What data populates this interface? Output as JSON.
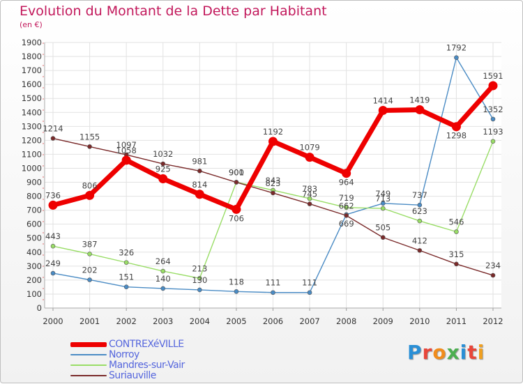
{
  "title": "Evolution du Montant de la Dette par Habitant",
  "subtitle": "(en €)",
  "logo": {
    "letters": [
      "P",
      "r",
      "o",
      "x",
      "i",
      "t",
      "i"
    ],
    "colors": [
      "#2a8fd6",
      "#e8463a",
      "#f08c1c",
      "#4caf50",
      "#2a8fd6",
      "#e8463a",
      "#f0a020"
    ]
  },
  "chart_data": {
    "type": "line",
    "title": "Evolution du Montant de la Dette par Habitant",
    "ylabel": "(en €)",
    "xlabel": "",
    "x": [
      "2000",
      "2001",
      "2002",
      "2003",
      "2004",
      "2005",
      "2006",
      "2007",
      "2008",
      "2009",
      "2010",
      "2011",
      "2012"
    ],
    "ylim": [
      0,
      1900
    ],
    "yticks": [
      "0",
      "100",
      "200",
      "300",
      "400",
      "500",
      "600",
      "700",
      "800",
      "900",
      "1000",
      "1100",
      "1200",
      "1300",
      "1400",
      "1500",
      "1600",
      "1700",
      "1800",
      "1900"
    ],
    "grid": true,
    "legend_position": "bottom-left",
    "series": [
      {
        "name": "CONTREXéVILLE",
        "color": "#ee0000",
        "values": [
          736,
          806,
          1058,
          925,
          814,
          706,
          1192,
          1079,
          964,
          1414,
          1419,
          1298,
          1591
        ]
      },
      {
        "name": "Norroy",
        "color": "#4a8bc4",
        "values": [
          249,
          202,
          151,
          140,
          130,
          118,
          111,
          111,
          669,
          749,
          737,
          1792,
          1352
        ]
      },
      {
        "name": "Mandres-sur-Vair",
        "color": "#99dd66",
        "values": [
          443,
          387,
          326,
          264,
          213,
          901,
          843,
          783,
          719,
          713,
          623,
          546,
          1193
        ]
      },
      {
        "name": "Suriauville",
        "color": "#7a2a2a",
        "values": [
          1214,
          1155,
          1097,
          1032,
          981,
          900,
          823,
          745,
          662,
          505,
          412,
          315,
          234
        ]
      }
    ]
  }
}
